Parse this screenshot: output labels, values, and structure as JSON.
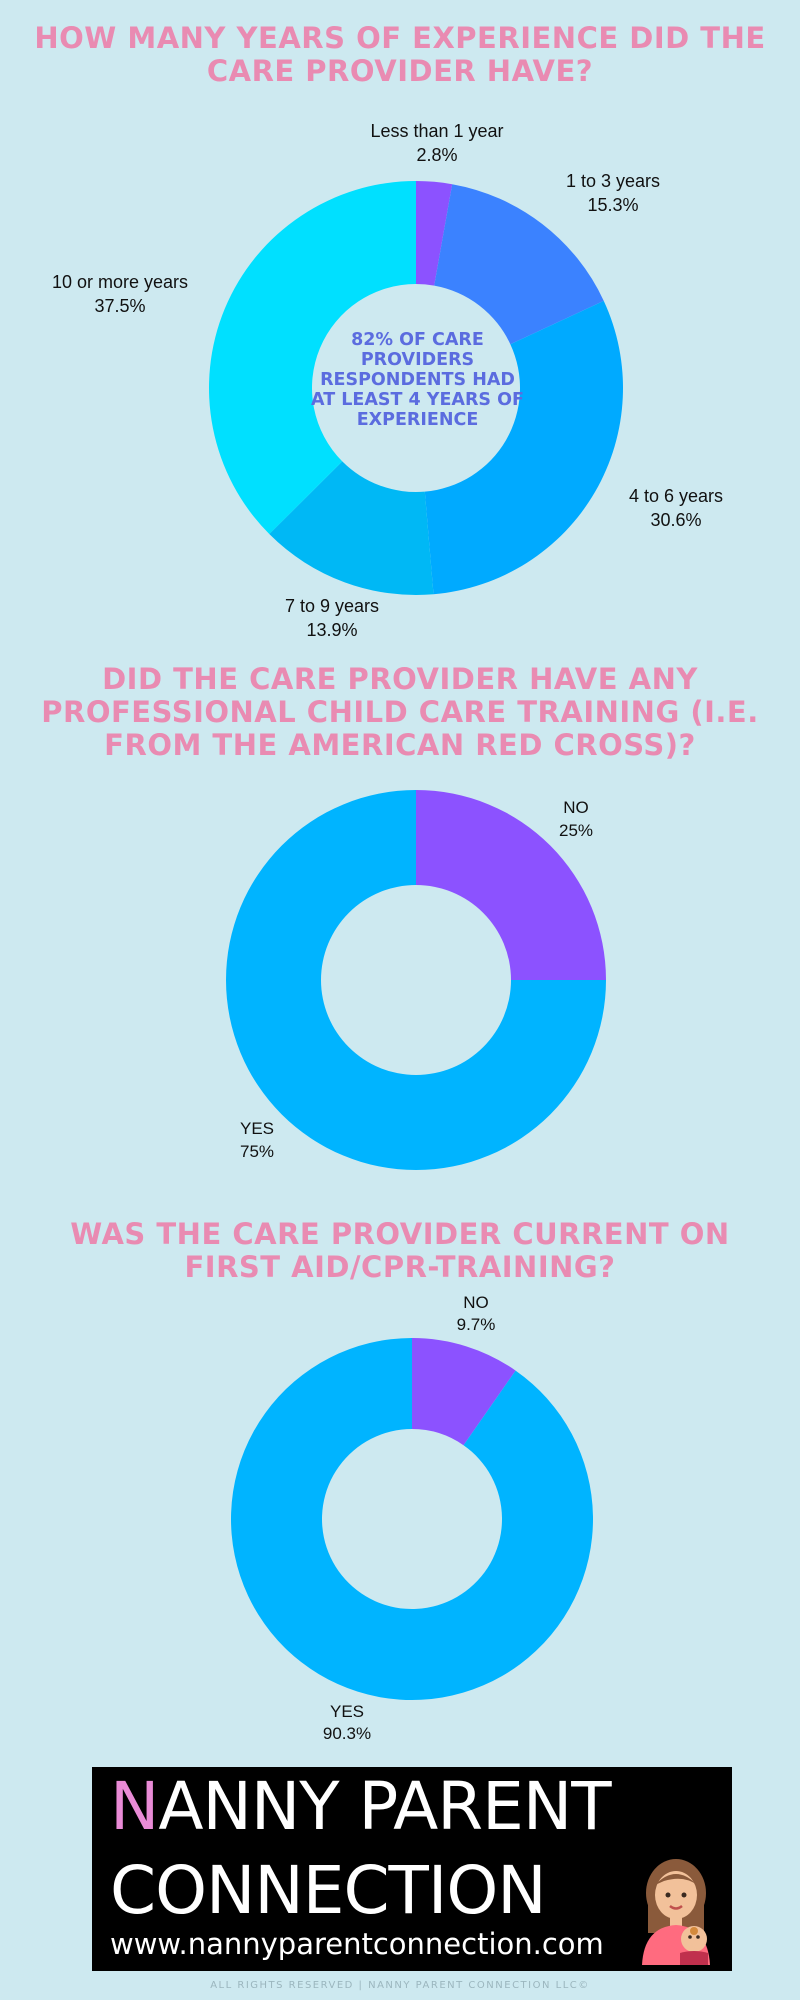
{
  "colors": {
    "background": "#cde9f0",
    "title_pink": "#e98bb2",
    "center_text": "#5b6cdf",
    "purple": "#8c52ff",
    "blue": "#3b82ff",
    "sky": "#00aaff",
    "sky_light": "#00b8f5",
    "cyan": "#00e0ff",
    "hole": "#cde9f0"
  },
  "chart_data": [
    {
      "type": "pie",
      "title": "HOW MANY YEARS OF EXPERIENCE DID THE CARE PROVIDER HAVE?",
      "donut": true,
      "center_label": "82% OF CARE PROVIDERS RESPONDENTS HAD AT LEAST 4 YEARS OF EXPERIENCE",
      "slices": [
        {
          "label": "Less than 1 year",
          "value": 2.8,
          "display": "2.8%",
          "color": "#8c52ff"
        },
        {
          "label": "1 to 3 years",
          "value": 15.3,
          "display": "15.3%",
          "color": "#3b82ff"
        },
        {
          "label": "4 to 6 years",
          "value": 30.6,
          "display": "30.6%",
          "color": "#00aaff"
        },
        {
          "label": "7 to 9 years",
          "value": 13.9,
          "display": "13.9%",
          "color": "#00b8f5"
        },
        {
          "label": "10 or more years",
          "value": 37.5,
          "display": "37.5%",
          "color": "#00e0ff"
        }
      ]
    },
    {
      "type": "pie",
      "title": "DID THE CARE PROVIDER HAVE ANY PROFESSIONAL CHILD CARE TRAINING (I.E. FROM THE AMERICAN RED CROSS)?",
      "donut": true,
      "slices": [
        {
          "label": "NO",
          "value": 25,
          "display": "25%",
          "color": "#8c52ff"
        },
        {
          "label": "YES",
          "value": 75,
          "display": "75%",
          "color": "#00b4ff"
        }
      ]
    },
    {
      "type": "pie",
      "title": "WAS THE CARE PROVIDER CURRENT ON FIRST AID/CPR-TRAINING?",
      "donut": true,
      "slices": [
        {
          "label": "NO",
          "value": 9.7,
          "display": "9.7%",
          "color": "#8c52ff"
        },
        {
          "label": "YES",
          "value": 90.3,
          "display": "90.3%",
          "color": "#00b4ff"
        }
      ]
    }
  ],
  "logo": {
    "first_letter": "N",
    "line1_rest": "ANNY PARENT",
    "line2": "CONNECTION",
    "url": "www.nannyparentconnection.com"
  },
  "footer": "ALL RIGHTS RESERVED | NANNY PARENT CONNECTION LLC©"
}
